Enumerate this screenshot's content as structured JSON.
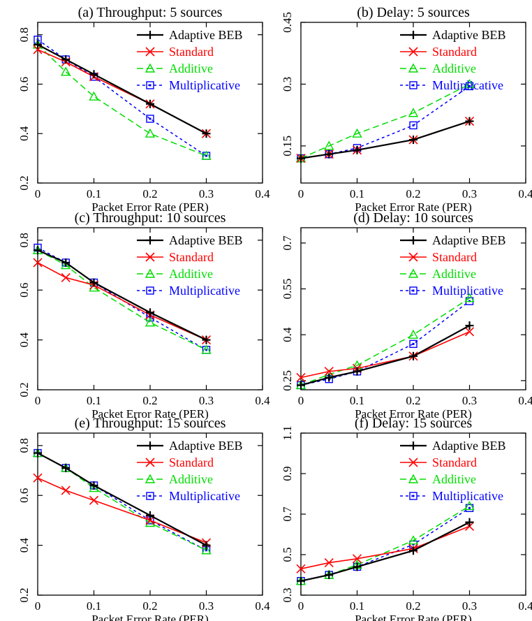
{
  "figure": {
    "xlabel": "Packet Error Rate (PER)",
    "xticks": [
      "0",
      "0.1",
      "0.2",
      "0.3",
      "0.4"
    ],
    "legend": [
      {
        "name": "Adaptive BEB",
        "color": "#000000",
        "marker": "plus"
      },
      {
        "name": "Standard",
        "color": "#ff0000",
        "marker": "cross"
      },
      {
        "name": "Additive",
        "color": "#00dd00",
        "marker": "triangle"
      },
      {
        "name": "Multiplicative",
        "color": "#0000ff",
        "marker": "square"
      }
    ]
  },
  "chart_data": [
    {
      "type": "line",
      "title": "(a) Throughput: 5 sources",
      "xlabel": "Packet Error Rate (PER)",
      "xlim": [
        0,
        0.4
      ],
      "ylim": [
        0.2,
        0.85
      ],
      "yticks": [
        "0.2",
        "0.4",
        "0.6",
        "0.8"
      ],
      "x": [
        0,
        0.05,
        0.1,
        0.2,
        0.3
      ],
      "series": [
        {
          "name": "Adaptive BEB",
          "values": [
            0.76,
            0.7,
            0.64,
            0.52,
            0.4
          ]
        },
        {
          "name": "Standard",
          "values": [
            0.74,
            0.69,
            0.63,
            0.52,
            0.4
          ]
        },
        {
          "name": "Additive",
          "values": [
            0.76,
            0.65,
            0.55,
            0.4,
            0.31
          ]
        },
        {
          "name": "Multiplicative",
          "values": [
            0.78,
            0.7,
            0.63,
            0.46,
            0.31
          ]
        }
      ]
    },
    {
      "type": "line",
      "title": "(b) Delay: 5 sources",
      "xlabel": "Packet Error Rate (PER)",
      "xlim": [
        0,
        0.4
      ],
      "ylim": [
        0.06,
        0.45
      ],
      "yticks": [
        "0.15",
        "0.3",
        "0.45"
      ],
      "x": [
        0,
        0.05,
        0.1,
        0.2,
        0.3
      ],
      "series": [
        {
          "name": "Adaptive BEB",
          "values": [
            0.12,
            0.13,
            0.14,
            0.165,
            0.21
          ]
        },
        {
          "name": "Standard",
          "values": [
            0.12,
            0.13,
            0.14,
            0.165,
            0.21
          ]
        },
        {
          "name": "Additive",
          "values": [
            0.12,
            0.15,
            0.18,
            0.23,
            0.3
          ]
        },
        {
          "name": "Multiplicative",
          "values": [
            0.12,
            0.13,
            0.145,
            0.2,
            0.295
          ]
        }
      ]
    },
    {
      "type": "line",
      "title": "(c) Throughput: 10 sources",
      "xlabel": "Packet Error Rate (PER)",
      "xlim": [
        0,
        0.4
      ],
      "ylim": [
        0.2,
        0.85
      ],
      "yticks": [
        "0.2",
        "0.4",
        "0.6",
        "0.8"
      ],
      "x": [
        0,
        0.05,
        0.1,
        0.2,
        0.3
      ],
      "series": [
        {
          "name": "Adaptive BEB",
          "values": [
            0.76,
            0.71,
            0.63,
            0.51,
            0.4
          ]
        },
        {
          "name": "Standard",
          "values": [
            0.71,
            0.65,
            0.62,
            0.5,
            0.4
          ]
        },
        {
          "name": "Additive",
          "values": [
            0.76,
            0.7,
            0.61,
            0.47,
            0.36
          ]
        },
        {
          "name": "Multiplicative",
          "values": [
            0.77,
            0.71,
            0.63,
            0.49,
            0.36
          ]
        }
      ]
    },
    {
      "type": "line",
      "title": "(d) Delay: 10 sources",
      "xlabel": "Packet Error Rate (PER)",
      "xlim": [
        0,
        0.4
      ],
      "ylim": [
        0.22,
        0.75
      ],
      "yticks": [
        "0.25",
        "0.4",
        "0.55",
        "0.7"
      ],
      "x": [
        0,
        0.05,
        0.1,
        0.2,
        0.3
      ],
      "series": [
        {
          "name": "Adaptive BEB",
          "values": [
            0.235,
            0.26,
            0.28,
            0.33,
            0.43
          ]
        },
        {
          "name": "Standard",
          "values": [
            0.26,
            0.28,
            0.29,
            0.33,
            0.41
          ]
        },
        {
          "name": "Additive",
          "values": [
            0.235,
            0.27,
            0.3,
            0.4,
            0.52
          ]
        },
        {
          "name": "Multiplicative",
          "values": [
            0.235,
            0.255,
            0.28,
            0.37,
            0.51
          ]
        }
      ]
    },
    {
      "type": "line",
      "title": "(e) Throughput: 15 sources",
      "xlabel": "Packet Error Rate (PER)",
      "xlim": [
        0,
        0.4
      ],
      "ylim": [
        0.2,
        0.85
      ],
      "yticks": [
        "0.2",
        "0.4",
        "0.6",
        "0.8"
      ],
      "x": [
        0,
        0.05,
        0.1,
        0.2,
        0.3
      ],
      "series": [
        {
          "name": "Adaptive BEB",
          "values": [
            0.77,
            0.71,
            0.64,
            0.52,
            0.4
          ]
        },
        {
          "name": "Standard",
          "values": [
            0.67,
            0.62,
            0.58,
            0.5,
            0.41
          ]
        },
        {
          "name": "Additive",
          "values": [
            0.77,
            0.71,
            0.63,
            0.49,
            0.38
          ]
        },
        {
          "name": "Multiplicative",
          "values": [
            0.77,
            0.71,
            0.64,
            0.5,
            0.38
          ]
        }
      ]
    },
    {
      "type": "line",
      "title": "(f) Delay: 15 sources",
      "xlabel": "Packet Error Rate (PER)",
      "xlim": [
        0,
        0.4
      ],
      "ylim": [
        0.3,
        1.1
      ],
      "yticks": [
        "0.3",
        "0.5",
        "0.7",
        "0.9",
        "1.1"
      ],
      "x": [
        0,
        0.05,
        0.1,
        0.2,
        0.3
      ],
      "series": [
        {
          "name": "Adaptive BEB",
          "values": [
            0.37,
            0.4,
            0.44,
            0.52,
            0.66
          ]
        },
        {
          "name": "Standard",
          "values": [
            0.43,
            0.46,
            0.48,
            0.53,
            0.64
          ]
        },
        {
          "name": "Additive",
          "values": [
            0.37,
            0.4,
            0.45,
            0.57,
            0.74
          ]
        },
        {
          "name": "Multiplicative",
          "values": [
            0.37,
            0.4,
            0.44,
            0.55,
            0.73
          ]
        }
      ]
    }
  ]
}
